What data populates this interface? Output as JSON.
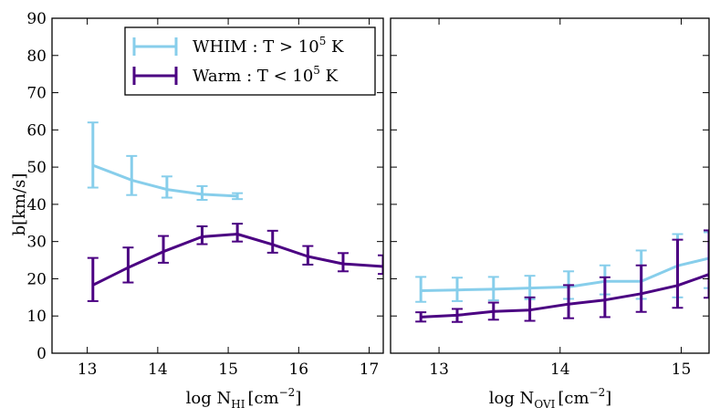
{
  "chart_data": [
    {
      "type": "line",
      "panel": "left",
      "xlabel": {
        "base": "log N",
        "sub": "HI",
        "unit": "[cm",
        "exp": "−2",
        "close": "]"
      },
      "ylabel": "b[km/s]",
      "xlim": [
        12.5,
        17.2
      ],
      "ylim": [
        0,
        90
      ],
      "xticks": [
        13,
        14,
        15,
        16,
        17
      ],
      "yticks": [
        0,
        10,
        20,
        30,
        40,
        50,
        60,
        70,
        80,
        90
      ],
      "legend_position": "top-right",
      "series": [
        {
          "name": "WHIM",
          "legend_base": "WHIM : T > 10",
          "legend_exp": "5",
          "legend_tail": " K",
          "color": "#87ceeb",
          "x": [
            13.08,
            13.63,
            14.13,
            14.63,
            15.13
          ],
          "y": [
            50.5,
            46.5,
            44.0,
            42.7,
            42.2
          ],
          "err": [
            [
              6.0,
              11.5
            ],
            [
              4.0,
              6.5
            ],
            [
              2.2,
              3.5
            ],
            [
              1.5,
              2.2
            ],
            [
              0.8,
              0.8
            ]
          ]
        },
        {
          "name": "Warm",
          "legend_base": "Warm : T < 10",
          "legend_exp": "5",
          "legend_tail": " K",
          "color": "#4b0082",
          "x": [
            13.08,
            13.58,
            14.08,
            14.63,
            15.13,
            15.63,
            16.13,
            16.63,
            17.2
          ],
          "y": [
            18.3,
            23.0,
            27.3,
            31.3,
            32.0,
            29.2,
            26.0,
            24.0,
            23.3
          ],
          "err": [
            [
              4.3,
              7.3
            ],
            [
              4.0,
              5.4
            ],
            [
              3.0,
              4.2
            ],
            [
              2.0,
              2.8
            ],
            [
              2.0,
              2.8
            ],
            [
              2.2,
              3.7
            ],
            [
              2.2,
              2.8
            ],
            [
              2.0,
              2.9
            ],
            [
              2.0,
              3.0
            ]
          ]
        }
      ]
    },
    {
      "type": "line",
      "panel": "right",
      "xlabel": {
        "base": "log N",
        "sub": "OVI",
        "unit": "[cm",
        "exp": "−2",
        "close": "]"
      },
      "ylabel": "",
      "xlim": [
        12.6,
        15.23
      ],
      "ylim": [
        0,
        90
      ],
      "xticks": [
        13,
        14,
        15
      ],
      "yticks": [
        0,
        10,
        20,
        30,
        40,
        50,
        60,
        70,
        80,
        90
      ],
      "series": [
        {
          "name": "WHIM",
          "color": "#87ceeb",
          "x": [
            12.85,
            13.15,
            13.45,
            13.75,
            14.07,
            14.37,
            14.67,
            14.97,
            15.23
          ],
          "y": [
            16.8,
            17.0,
            17.2,
            17.5,
            17.8,
            19.3,
            19.3,
            23.5,
            25.5
          ],
          "err": [
            [
              3.0,
              3.7
            ],
            [
              3.0,
              3.3
            ],
            [
              3.0,
              3.3
            ],
            [
              3.0,
              3.3
            ],
            [
              3.2,
              4.2
            ],
            [
              3.5,
              4.3
            ],
            [
              4.7,
              8.3
            ],
            [
              8.5,
              8.5
            ],
            [
              8.0,
              7.0
            ]
          ]
        },
        {
          "name": "Warm",
          "color": "#4b0082",
          "x": [
            12.85,
            13.15,
            13.45,
            13.75,
            14.07,
            14.37,
            14.67,
            14.97,
            15.23
          ],
          "y": [
            9.7,
            10.2,
            11.2,
            11.6,
            13.2,
            14.3,
            16.0,
            18.2,
            21.2
          ],
          "err": [
            [
              1.2,
              1.3
            ],
            [
              1.8,
              1.7
            ],
            [
              2.2,
              2.4
            ],
            [
              2.9,
              3.4
            ],
            [
              3.8,
              5.1
            ],
            [
              4.6,
              6.1
            ],
            [
              4.9,
              7.6
            ],
            [
              6.0,
              12.3
            ],
            [
              6.3,
              11.8
            ]
          ]
        }
      ]
    }
  ]
}
